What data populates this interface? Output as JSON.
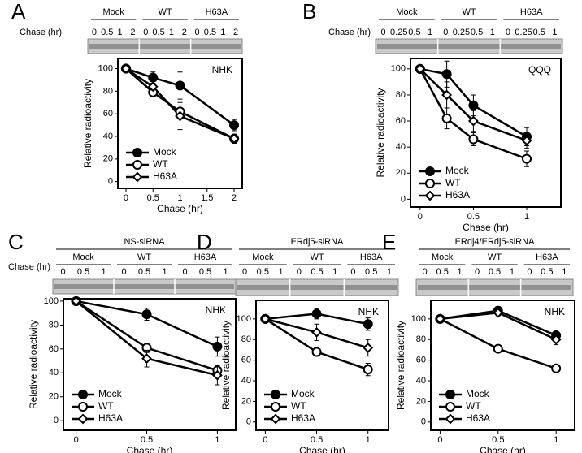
{
  "chart_data": [
    {
      "type": "line",
      "panel": "A",
      "annotation": "NHK",
      "xlabel": "Chase (hr)",
      "ylabel": "Relative radioactivity",
      "x": [
        0,
        0.5,
        1,
        2
      ],
      "xlim": [
        -0.15,
        2.15
      ],
      "xticks": [
        0,
        0.5,
        1,
        1.5,
        2
      ],
      "ylim": [
        -6,
        109
      ],
      "yticks": [
        0,
        20,
        40,
        60,
        80,
        100
      ],
      "legend": "lower left",
      "gel": {
        "groups": [
          "Mock",
          "WT",
          "H63A"
        ],
        "lane_header": "Chase (hr)",
        "lanes": [
          "0",
          "0.5",
          "1",
          "2"
        ]
      },
      "series": [
        {
          "name": "Mock",
          "marker": "filled-circle",
          "color": "#000000",
          "values": [
            100,
            92,
            85,
            50
          ],
          "errors": [
            0,
            5,
            12,
            5
          ]
        },
        {
          "name": "WT",
          "marker": "open-circle",
          "color": "#000000",
          "values": [
            100,
            79,
            62,
            38
          ],
          "errors": [
            0,
            3,
            5,
            4
          ]
        },
        {
          "name": "H63A",
          "marker": "open-diamond",
          "color": "#000000",
          "values": [
            100,
            84,
            58,
            38
          ],
          "errors": [
            0,
            3,
            12,
            4
          ]
        }
      ]
    },
    {
      "type": "line",
      "panel": "B",
      "annotation": "QQQ",
      "xlabel": "Chase (hr)",
      "ylabel": "Relative radioactivity",
      "x": [
        0,
        0.25,
        0.5,
        1
      ],
      "xlim": [
        -0.09,
        1.32
      ],
      "xticks": [
        0,
        0.5,
        1
      ],
      "ylim": [
        -6,
        108
      ],
      "yticks": [
        0,
        20,
        40,
        60,
        80,
        100
      ],
      "legend": "lower left",
      "gel": {
        "groups": [
          "Mock",
          "WT",
          "H63A"
        ],
        "lane_header": "Chase (hr)",
        "lanes": [
          "0",
          "0.25",
          "0.5",
          "1"
        ]
      },
      "series": [
        {
          "name": "Mock",
          "marker": "filled-circle",
          "color": "#000000",
          "values": [
            100,
            96,
            72,
            48
          ],
          "errors": [
            0,
            10,
            8,
            7
          ]
        },
        {
          "name": "WT",
          "marker": "open-circle",
          "color": "#000000",
          "values": [
            100,
            62,
            46,
            31
          ],
          "errors": [
            0,
            8,
            5,
            6
          ]
        },
        {
          "name": "H63A",
          "marker": "open-diamond",
          "color": "#000000",
          "values": [
            100,
            80,
            60,
            45
          ],
          "errors": [
            0,
            10,
            8,
            6
          ]
        }
      ]
    },
    {
      "type": "line",
      "panel": "C",
      "annotation": "NHK",
      "xlabel": "Chase (hr)",
      "ylabel": "Relative radioactivity",
      "x": [
        0,
        0.5,
        1
      ],
      "xlim": [
        -0.09,
        1.13
      ],
      "xticks": [
        0,
        0.5,
        1
      ],
      "ylim": [
        -8,
        102
      ],
      "yticks": [
        0,
        20,
        40,
        60,
        80,
        100
      ],
      "legend": "lower left",
      "gel": {
        "title": "NS-siRNA",
        "groups": [
          "Mock",
          "WT",
          "H63A"
        ],
        "lane_header": "Chase (hr)",
        "lanes": [
          "0",
          "0.5",
          "1"
        ]
      },
      "series": [
        {
          "name": "Mock",
          "marker": "filled-circle",
          "color": "#000000",
          "values": [
            100,
            89,
            62
          ],
          "errors": [
            0,
            5,
            8
          ]
        },
        {
          "name": "WT",
          "marker": "open-circle",
          "color": "#000000",
          "values": [
            100,
            61,
            42
          ],
          "errors": [
            0,
            4,
            4
          ]
        },
        {
          "name": "H63A",
          "marker": "open-diamond",
          "color": "#000000",
          "values": [
            100,
            52,
            38
          ],
          "errors": [
            0,
            7,
            8
          ]
        }
      ]
    },
    {
      "type": "line",
      "panel": "D",
      "annotation": "NHK",
      "xlabel": "Chase (hr)",
      "ylabel": "Relative radioactivity",
      "x": [
        0,
        0.5,
        1
      ],
      "xlim": [
        -0.09,
        1.2
      ],
      "xticks": [
        0,
        0.5,
        1
      ],
      "ylim": [
        -8,
        118
      ],
      "yticks": [
        0,
        20,
        40,
        60,
        80,
        100
      ],
      "legend": "lower left",
      "gel": {
        "title": "ERdj5-siRNA",
        "groups": [
          "Mock",
          "WT",
          "H63A"
        ],
        "lanes": [
          "0",
          "0.5",
          "1"
        ]
      },
      "series": [
        {
          "name": "Mock",
          "marker": "filled-circle",
          "color": "#000000",
          "values": [
            100,
            105,
            95
          ],
          "errors": [
            0,
            5,
            6
          ]
        },
        {
          "name": "WT",
          "marker": "open-circle",
          "color": "#000000",
          "values": [
            100,
            68,
            51
          ],
          "errors": [
            0,
            4,
            6
          ]
        },
        {
          "name": "H63A",
          "marker": "open-diamond",
          "color": "#000000",
          "values": [
            100,
            87,
            72
          ],
          "errors": [
            0,
            8,
            8
          ]
        }
      ]
    },
    {
      "type": "line",
      "panel": "E",
      "annotation": "NHK",
      "xlabel": "Chase (hr)",
      "ylabel": "Relative radioactivity",
      "x": [
        0,
        0.5,
        1
      ],
      "xlim": [
        -0.08,
        1.16
      ],
      "xticks": [
        0,
        0.5,
        1
      ],
      "ylim": [
        -8,
        118
      ],
      "yticks": [
        0,
        20,
        40,
        60,
        80,
        100
      ],
      "legend": "lower left",
      "gel": {
        "title": "ERdj4/ERdj5-siRNA",
        "groups": [
          "Mock",
          "WT",
          "H63A"
        ],
        "lanes": [
          "0",
          "0.5",
          "1"
        ]
      },
      "series": [
        {
          "name": "Mock",
          "marker": "filled-circle",
          "color": "#000000",
          "values": [
            100,
            108,
            84
          ],
          "errors": [
            0,
            4,
            5
          ]
        },
        {
          "name": "WT",
          "marker": "open-circle",
          "color": "#000000",
          "values": [
            100,
            71,
            52
          ],
          "errors": [
            0,
            2,
            4
          ]
        },
        {
          "name": "H63A",
          "marker": "open-diamond",
          "color": "#000000",
          "values": [
            100,
            106,
            80
          ],
          "errors": [
            0,
            3,
            5
          ]
        }
      ]
    }
  ]
}
